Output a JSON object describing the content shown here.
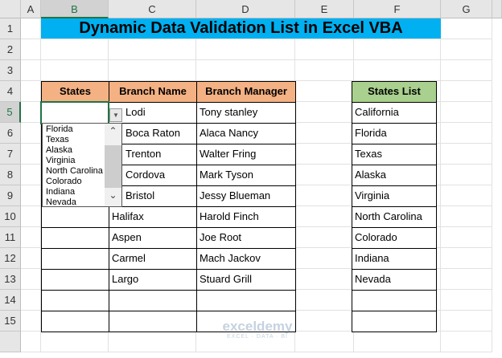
{
  "columns": [
    "A",
    "B",
    "C",
    "D",
    "E",
    "F",
    "G"
  ],
  "rows": [
    "1",
    "2",
    "3",
    "4",
    "5",
    "6",
    "7",
    "8",
    "9",
    "10",
    "11",
    "12",
    "13",
    "14",
    "15"
  ],
  "title": "Dynamic Data Validation List in Excel VBA",
  "table": {
    "headers": [
      "States",
      "Branch Name",
      "Branch Manager"
    ],
    "rows": [
      [
        "",
        "Lodi",
        "Tony stanley"
      ],
      [
        "",
        "Boca Raton",
        "Alaca Nancy"
      ],
      [
        "",
        "Trenton",
        "Walter Fring"
      ],
      [
        "",
        "Cordova",
        "Mark Tyson"
      ],
      [
        "",
        "Bristol",
        "Jessy Blueman"
      ],
      [
        "",
        "Halifax",
        "Harold Finch"
      ],
      [
        "",
        "Aspen",
        "Joe Root"
      ],
      [
        "",
        "Carmel",
        "Mach Jackov"
      ],
      [
        "",
        "Largo",
        "Stuard Grill"
      ],
      [
        "",
        "",
        ""
      ],
      [
        "",
        "",
        ""
      ]
    ]
  },
  "states_list": {
    "header": "States List",
    "items": [
      "California",
      "Florida",
      "Texas",
      "Alaska",
      "Virginia",
      "North Carolina",
      "Colorado",
      "Indiana",
      "Nevada",
      "",
      ""
    ]
  },
  "dropdown": {
    "items": [
      "Florida",
      "Texas",
      "Alaska",
      "Virginia",
      "North Carolina",
      "Colorado",
      "Indiana",
      "Nevada"
    ]
  },
  "watermark": {
    "name": "exceldemy",
    "tagline": "EXCEL · DATA · BI"
  },
  "colors": {
    "title_bg": "#00b0f0",
    "header_bg": "#f4b183",
    "states_header_bg": "#a9d08e",
    "selection": "#217346"
  }
}
